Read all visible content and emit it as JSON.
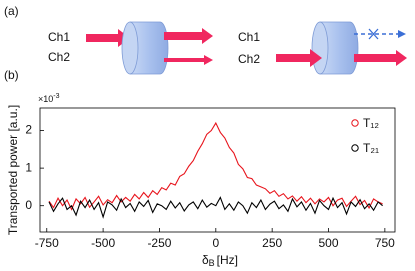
{
  "panel_labels": [
    "(a)",
    "(b)"
  ],
  "diagram": {
    "left": {
      "inputs": [
        "Ch1",
        "Ch2"
      ]
    },
    "right": {
      "inputs": [
        "Ch1",
        "Ch2"
      ]
    }
  },
  "chart_data": {
    "type": "line",
    "y_label": "Transported power [a.u.]",
    "y_multiplier": {
      "base": "×10",
      "exponent": "-3"
    },
    "x_label": {
      "symbol": "δ",
      "subscript": "B",
      "unit": "[Hz]"
    },
    "xlim": [
      -780,
      795
    ],
    "xticks": [
      -750,
      -500,
      -250,
      0,
      250,
      500,
      750
    ],
    "ylim": [
      -0.7,
      2.6
    ],
    "yticks": [
      0,
      1,
      2
    ],
    "legend": "upper right",
    "x": [
      -740,
      -720,
      -700,
      -680,
      -660,
      -640,
      -620,
      -600,
      -580,
      -560,
      -540,
      -520,
      -500,
      -480,
      -460,
      -440,
      -420,
      -400,
      -380,
      -360,
      -340,
      -320,
      -300,
      -280,
      -260,
      -240,
      -220,
      -200,
      -180,
      -160,
      -140,
      -120,
      -100,
      -80,
      -60,
      -40,
      -20,
      0,
      20,
      40,
      60,
      80,
      100,
      120,
      140,
      160,
      180,
      200,
      220,
      240,
      260,
      280,
      300,
      320,
      340,
      360,
      380,
      400,
      420,
      440,
      460,
      480,
      500,
      520,
      540,
      560,
      580,
      600,
      620,
      640,
      660,
      680,
      700,
      720,
      740
    ],
    "series": [
      {
        "name": "T₁₂",
        "color": "#e8141c",
        "values": [
          0.12,
          -0.05,
          0.2,
          0.0,
          0.15,
          -0.1,
          0.18,
          0.05,
          0.22,
          -0.04,
          0.1,
          0.25,
          0.02,
          0.16,
          0.08,
          0.27,
          0.1,
          0.22,
          0.12,
          0.3,
          0.18,
          0.35,
          0.22,
          0.4,
          0.3,
          0.48,
          0.42,
          0.6,
          0.55,
          0.78,
          0.85,
          1.05,
          1.2,
          1.45,
          1.65,
          1.9,
          2.0,
          2.2,
          1.95,
          1.8,
          1.55,
          1.4,
          1.1,
          0.98,
          0.75,
          0.72,
          0.55,
          0.5,
          0.45,
          0.33,
          0.4,
          0.25,
          0.32,
          0.18,
          0.26,
          0.12,
          0.24,
          0.08,
          0.2,
          0.05,
          0.18,
          0.1,
          0.22,
          0.0,
          0.15,
          0.2,
          -0.02,
          0.12,
          0.25,
          0.03,
          0.14,
          -0.06,
          0.18,
          0.1,
          0.05
        ]
      },
      {
        "name": "T₂₁",
        "color": "#000000",
        "values": [
          0.1,
          -0.15,
          0.05,
          0.2,
          -0.1,
          0.0,
          -0.25,
          0.12,
          -0.05,
          0.15,
          -0.1,
          0.08,
          -0.3,
          0.1,
          0.02,
          -0.12,
          0.18,
          -0.05,
          0.06,
          -0.15,
          0.1,
          -0.02,
          0.14,
          -0.18,
          0.05,
          0.0,
          -0.1,
          0.12,
          -0.06,
          0.08,
          -0.14,
          0.02,
          0.1,
          -0.08,
          0.15,
          -0.04,
          0.06,
          0.0,
          0.22,
          -0.1,
          0.05,
          -0.12,
          0.1,
          0.0,
          -0.2,
          0.08,
          -0.05,
          0.15,
          -0.1,
          0.04,
          0.12,
          -0.08,
          0.02,
          -0.15,
          0.18,
          -0.03,
          0.1,
          -0.12,
          0.06,
          -0.2,
          0.14,
          0.0,
          -0.1,
          0.2,
          -0.05,
          0.08,
          -0.22,
          0.1,
          -0.02,
          0.16,
          -0.08,
          0.05,
          -0.12,
          0.1,
          0.0
        ]
      }
    ]
  }
}
